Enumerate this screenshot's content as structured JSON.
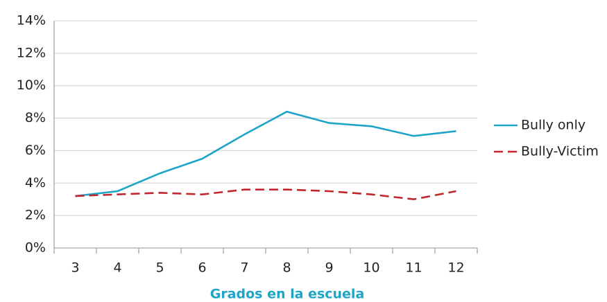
{
  "chart_data": {
    "type": "line",
    "xlabel": "Grados en la escuela",
    "categories": [
      "3",
      "4",
      "5",
      "6",
      "7",
      "8",
      "9",
      "10",
      "11",
      "12"
    ],
    "series": [
      {
        "name": "Bully only",
        "color": "#1ea4c6",
        "dash": "solid",
        "values": [
          3.2,
          3.5,
          4.6,
          5.5,
          7.0,
          8.4,
          7.7,
          7.5,
          6.9,
          7.2
        ]
      },
      {
        "name": "Bully-Victim",
        "color": "#c0262d",
        "dash": "dashed",
        "values": [
          3.2,
          3.3,
          3.4,
          3.3,
          3.6,
          3.6,
          3.5,
          3.3,
          3.0,
          3.5
        ]
      }
    ],
    "ylim": [
      0,
      14
    ],
    "yticks": [
      {
        "value": 0,
        "label": "0%"
      },
      {
        "value": 2,
        "label": "2%"
      },
      {
        "value": 4,
        "label": "4%"
      },
      {
        "value": 6,
        "label": "6%"
      },
      {
        "value": 8,
        "label": "8%"
      },
      {
        "value": 10,
        "label": "10%"
      },
      {
        "value": 12,
        "label": "12%"
      },
      {
        "value": 14,
        "label": "14%"
      }
    ],
    "grid": true,
    "legend": "right"
  }
}
